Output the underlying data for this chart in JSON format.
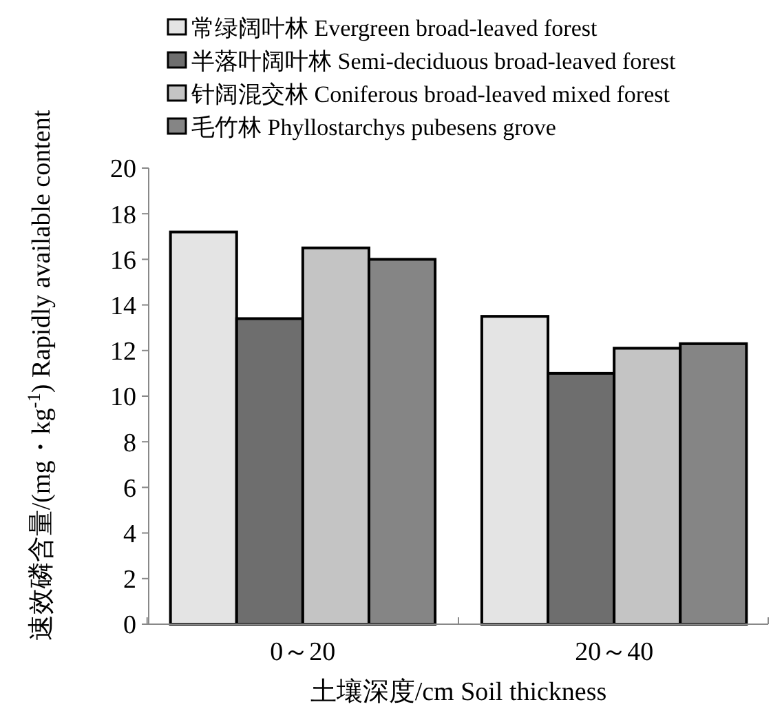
{
  "chart_data": {
    "type": "bar",
    "xlabel": "土壤深度/cm Soil thickness",
    "ylabel": "速效磷含量/(mg・kg$^{-1}$)  Rapidly available content",
    "categories": [
      "0～20",
      "20～40"
    ],
    "series": [
      {
        "name": "常绿阔叶林  Evergreen broad-leaved forest",
        "color": "#e4e4e4",
        "values": [
          17.2,
          13.5
        ]
      },
      {
        "name": "半落叶阔叶林  Semi-deciduous broad-leaved forest",
        "color": "#6e6e6e",
        "values": [
          13.4,
          11.0
        ]
      },
      {
        "name": "针阔混交林  Coniferous broad-leaved mixed forest",
        "color": "#c4c4c4",
        "values": [
          16.5,
          12.1
        ]
      },
      {
        "name": "毛竹林  Phyllostarchys pubesens grove",
        "color": "#858585",
        "values": [
          16.0,
          12.3
        ]
      }
    ],
    "ylim": [
      0,
      20
    ],
    "yticks": [
      0,
      2,
      4,
      6,
      8,
      10,
      12,
      14,
      16,
      18,
      20
    ],
    "grid": false,
    "legend": "top left"
  }
}
